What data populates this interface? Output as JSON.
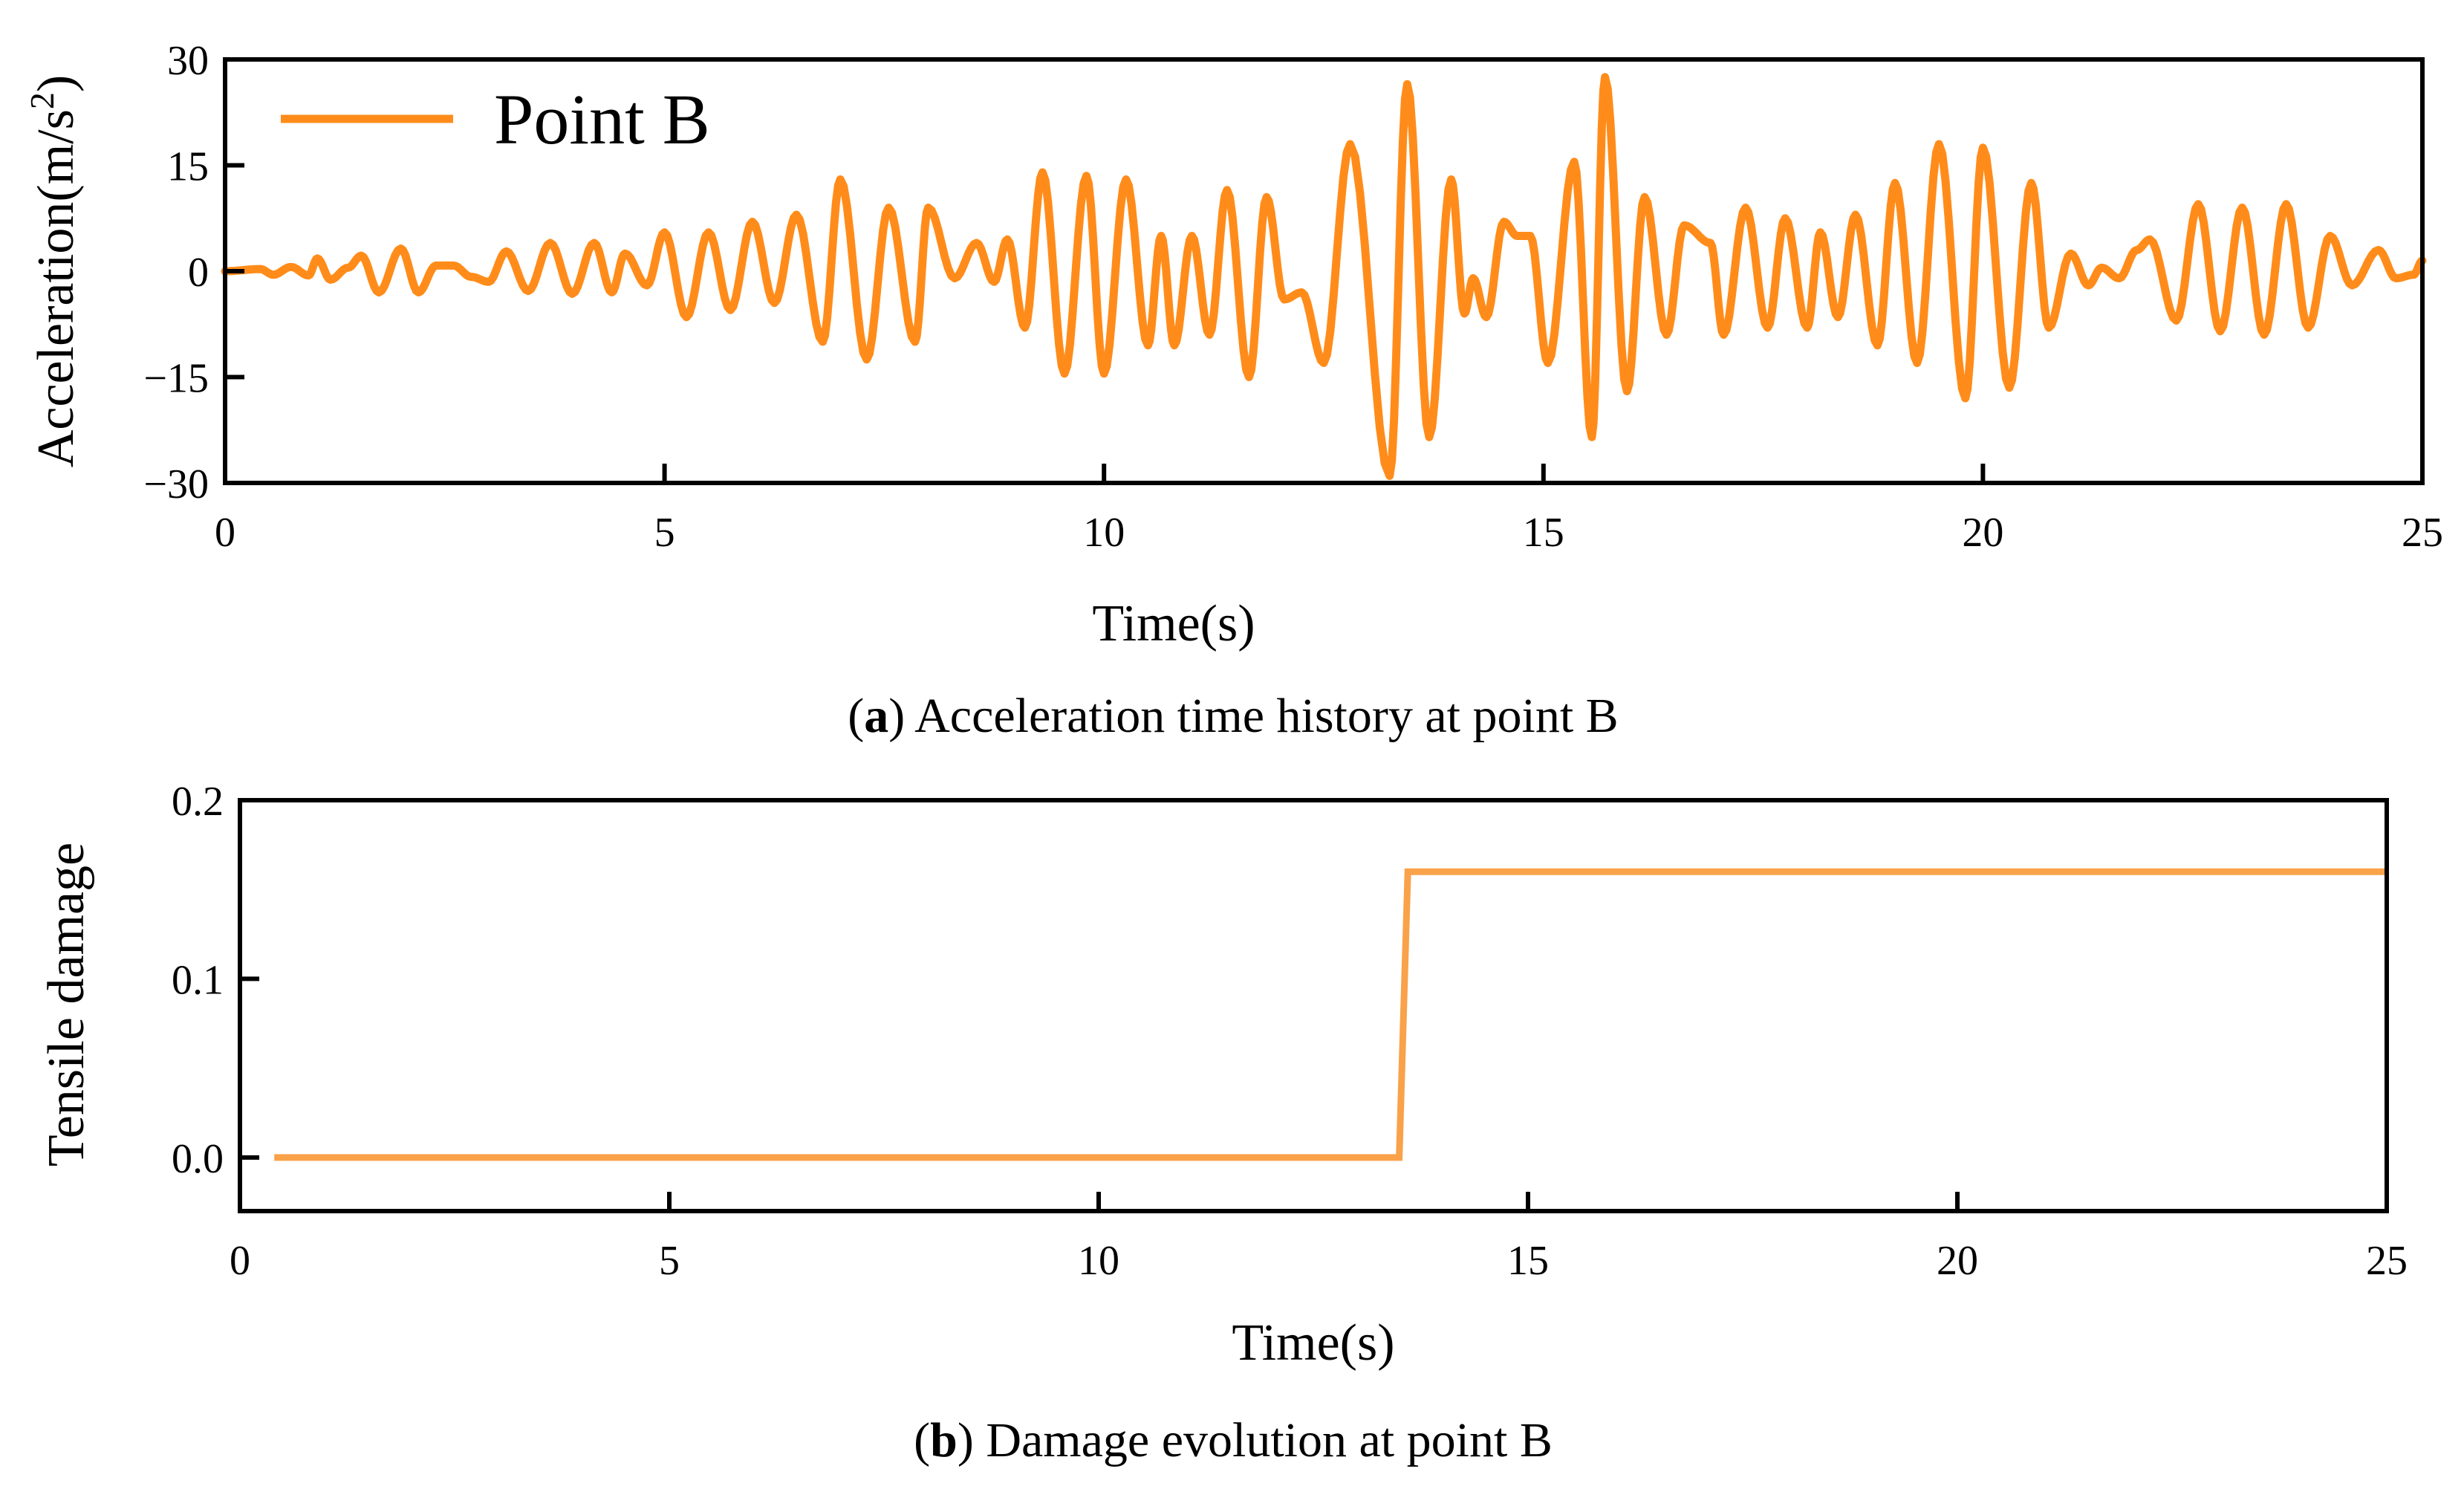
{
  "colors": {
    "accel_line": "#ff8c1a",
    "damage_line": "#f9a24a"
  },
  "chart_data": [
    {
      "type": "line",
      "panel_letter": "a",
      "caption": "Acceleration time history at point B",
      "xlabel": "Time(s)",
      "ylabel": "Acceleration(m/s",
      "ylabel_sup": "2",
      "ylabel_end": ")",
      "xlim": [
        0,
        25
      ],
      "ylim": [
        -30,
        30
      ],
      "xticks": [
        0,
        5,
        10,
        15,
        20,
        25
      ],
      "xtick_labels": [
        "0",
        "5",
        "10",
        "15",
        "20",
        "25"
      ],
      "yticks": [
        -30,
        -15,
        0,
        15,
        30
      ],
      "ytick_labels": [
        "−30",
        "−15",
        "0",
        "15",
        "30"
      ],
      "grid": false,
      "legend": {
        "placement": "top-left",
        "entries": [
          "Point B"
        ]
      },
      "series": [
        {
          "name": "Point B",
          "peaks": [
            [
              0.0,
              0.0
            ],
            [
              0.4,
              0.3
            ],
            [
              0.55,
              -0.5
            ],
            [
              0.75,
              0.6
            ],
            [
              0.95,
              -0.6
            ],
            [
              1.05,
              1.8
            ],
            [
              1.2,
              -1.2
            ],
            [
              1.4,
              0.5
            ],
            [
              1.55,
              2.2
            ],
            [
              1.75,
              -3.0
            ],
            [
              2.0,
              3.2
            ],
            [
              2.2,
              -3.0
            ],
            [
              2.4,
              0.8
            ],
            [
              2.6,
              0.8
            ],
            [
              2.8,
              -0.8
            ],
            [
              3.0,
              -1.5
            ],
            [
              3.2,
              2.8
            ],
            [
              3.45,
              -2.8
            ],
            [
              3.7,
              4.0
            ],
            [
              3.95,
              -3.2
            ],
            [
              4.2,
              4.0
            ],
            [
              4.4,
              -3.0
            ],
            [
              4.55,
              2.5
            ],
            [
              4.8,
              -2.0
            ],
            [
              5.0,
              5.5
            ],
            [
              5.25,
              -6.5
            ],
            [
              5.5,
              5.5
            ],
            [
              5.75,
              -5.5
            ],
            [
              6.0,
              7.0
            ],
            [
              6.25,
              -4.5
            ],
            [
              6.5,
              8.0
            ],
            [
              6.8,
              -10.0
            ],
            [
              7.0,
              13.0
            ],
            [
              7.3,
              -12.5
            ],
            [
              7.55,
              9.0
            ],
            [
              7.85,
              -10.0
            ],
            [
              8.0,
              9.0
            ],
            [
              8.3,
              -1.0
            ],
            [
              8.55,
              4.0
            ],
            [
              8.75,
              -1.5
            ],
            [
              8.9,
              4.5
            ],
            [
              9.1,
              -8.0
            ],
            [
              9.3,
              14.0
            ],
            [
              9.55,
              -14.5
            ],
            [
              9.8,
              13.5
            ],
            [
              10.0,
              -14.5
            ],
            [
              10.25,
              13.0
            ],
            [
              10.5,
              -10.5
            ],
            [
              10.65,
              5.0
            ],
            [
              10.8,
              -10.5
            ],
            [
              11.0,
              5.0
            ],
            [
              11.2,
              -9.0
            ],
            [
              11.4,
              11.5
            ],
            [
              11.65,
              -15.0
            ],
            [
              11.85,
              10.5
            ],
            [
              12.05,
              -4.0
            ],
            [
              12.25,
              -3.0
            ],
            [
              12.5,
              -13.0
            ],
            [
              12.8,
              18.0
            ],
            [
              13.25,
              -29.0
            ],
            [
              13.45,
              26.5
            ],
            [
              13.7,
              -23.5
            ],
            [
              13.95,
              13.0
            ],
            [
              14.1,
              -6.0
            ],
            [
              14.2,
              -1.0
            ],
            [
              14.35,
              -6.5
            ],
            [
              14.55,
              7.0
            ],
            [
              14.7,
              5.0
            ],
            [
              14.85,
              5.0
            ],
            [
              15.05,
              -13.0
            ],
            [
              15.35,
              15.5
            ],
            [
              15.55,
              -23.5
            ],
            [
              15.7,
              27.5
            ],
            [
              15.95,
              -17.0
            ],
            [
              16.15,
              10.5
            ],
            [
              16.4,
              -9.0
            ],
            [
              16.6,
              6.5
            ],
            [
              16.9,
              4.0
            ],
            [
              17.05,
              -9.0
            ],
            [
              17.3,
              9.0
            ],
            [
              17.55,
              -8.0
            ],
            [
              17.75,
              7.5
            ],
            [
              18.0,
              -8.0
            ],
            [
              18.15,
              5.5
            ],
            [
              18.35,
              -6.5
            ],
            [
              18.55,
              8.0
            ],
            [
              18.8,
              -10.5
            ],
            [
              19.0,
              12.5
            ],
            [
              19.25,
              -13.0
            ],
            [
              19.5,
              18.0
            ],
            [
              19.8,
              -18.0
            ],
            [
              20.0,
              17.5
            ],
            [
              20.3,
              -16.5
            ],
            [
              20.55,
              12.5
            ],
            [
              20.75,
              -8.0
            ],
            [
              21.0,
              2.5
            ],
            [
              21.2,
              -2.0
            ],
            [
              21.35,
              0.5
            ],
            [
              21.55,
              -1.0
            ],
            [
              21.75,
              3.0
            ],
            [
              21.9,
              4.5
            ],
            [
              22.2,
              -7.0
            ],
            [
              22.45,
              9.5
            ],
            [
              22.7,
              -8.5
            ],
            [
              22.95,
              9.0
            ],
            [
              23.2,
              -9.0
            ],
            [
              23.45,
              9.5
            ],
            [
              23.7,
              -8.0
            ],
            [
              23.95,
              5.0
            ],
            [
              24.2,
              -2.0
            ],
            [
              24.5,
              3.0
            ],
            [
              24.7,
              -1.0
            ],
            [
              24.9,
              -0.5
            ],
            [
              25.0,
              1.5
            ]
          ]
        }
      ]
    },
    {
      "type": "line",
      "panel_letter": "b",
      "caption": "Damage evolution at point B",
      "xlabel": "Time(s)",
      "ylabel": "Tensile damage",
      "xlim": [
        0,
        25
      ],
      "ylim": [
        -0.03,
        0.2
      ],
      "xticks": [
        0,
        5,
        10,
        15,
        20,
        25
      ],
      "xtick_labels": [
        "0",
        "5",
        "10",
        "15",
        "20",
        "25"
      ],
      "yticks": [
        0.0,
        0.1,
        0.2
      ],
      "ytick_labels": [
        "0.0",
        "0.1",
        "0.2"
      ],
      "grid": false,
      "series": [
        {
          "points": [
            [
              0.4,
              0.0
            ],
            [
              13.5,
              0.0
            ],
            [
              13.6,
              0.16
            ],
            [
              25.0,
              0.16
            ]
          ]
        }
      ]
    }
  ]
}
